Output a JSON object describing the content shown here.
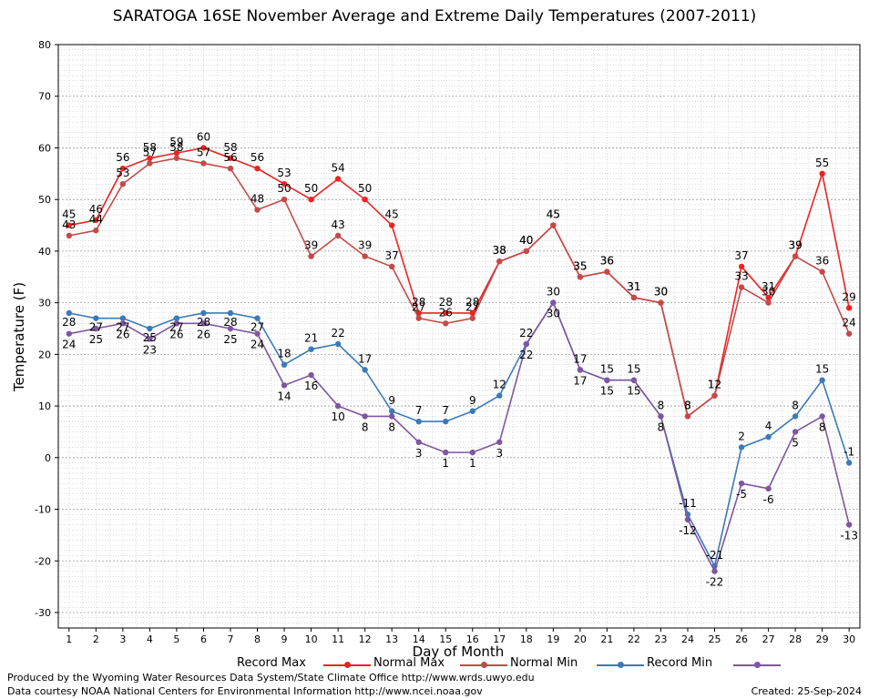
{
  "chart_data": {
    "type": "line",
    "title": "SARATOGA 16SE November Average and Extreme Daily Temperatures (2007-2011)",
    "xlabel": "Day of Month",
    "ylabel": "Temperature (F)",
    "x": [
      1,
      2,
      3,
      4,
      5,
      6,
      7,
      8,
      9,
      10,
      11,
      12,
      13,
      14,
      15,
      16,
      17,
      18,
      19,
      20,
      21,
      22,
      23,
      24,
      25,
      26,
      27,
      28,
      29,
      30
    ],
    "xlim": [
      0.6,
      30.4
    ],
    "ylim": [
      -33,
      80
    ],
    "yticks": [
      -30,
      -20,
      -10,
      0,
      10,
      20,
      30,
      40,
      50,
      60,
      70,
      80
    ],
    "grid": true,
    "legend_position": "bottom",
    "series": [
      {
        "name": "Record Max",
        "color": "#ee2222",
        "values": [
          45,
          46,
          56,
          58,
          59,
          60,
          58,
          56,
          53,
          50,
          54,
          50,
          45,
          28,
          28,
          28,
          38,
          40,
          45,
          35,
          36,
          31,
          30,
          8,
          12,
          37,
          31,
          39,
          55,
          29
        ]
      },
      {
        "name": "Normal Max",
        "color": "#c44a4a",
        "values": [
          43,
          44,
          53,
          57,
          58,
          57,
          56,
          48,
          50,
          39,
          43,
          39,
          37,
          27,
          26,
          27,
          38,
          40,
          45,
          35,
          36,
          31,
          30,
          8,
          12,
          33,
          30,
          39,
          36,
          24
        ]
      },
      {
        "name": "Normal Min",
        "color": "#3a7ab8",
        "values": [
          28,
          27,
          27,
          25,
          27,
          28,
          28,
          27,
          18,
          21,
          22,
          17,
          9,
          7,
          7,
          9,
          12,
          22,
          30,
          17,
          15,
          15,
          8,
          -11,
          -21,
          2,
          4,
          8,
          15,
          -1
        ]
      },
      {
        "name": "Record Min",
        "color": "#7f56a0",
        "values": [
          24,
          25,
          26,
          23,
          26,
          26,
          25,
          24,
          14,
          16,
          10,
          8,
          8,
          3,
          1,
          1,
          3,
          22,
          30,
          17,
          15,
          15,
          8,
          -12,
          -22,
          -5,
          -6,
          5,
          8,
          -13
        ]
      }
    ]
  },
  "footer": {
    "line1": "Produced by the Wyoming Water Resources Data System/State Climate Office http://www.wrds.uwyo.edu",
    "line2": "Data courtesy NOAA National Centers for Environmental Information http://www.ncei.noaa.gov",
    "created": "Created:  25-Sep-2024"
  }
}
